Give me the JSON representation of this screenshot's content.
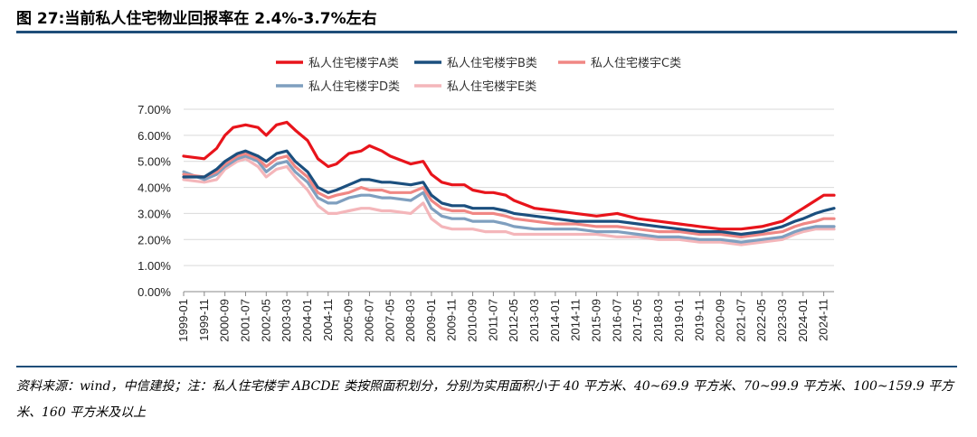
{
  "figure": {
    "title": "图 27:当前私人住宅物业回报率在 2.4%-3.7%左右",
    "source": "资料来源：wind，中信建投；注：私人住宅楼宇 ABCDE 类按照面积划分，分别为实用面积小于 40 平方米、40~69.9 平方米、70~99.9 平方米、100~159.9 平方米、160 平方米及以上"
  },
  "chart_data": {
    "type": "line",
    "title": "",
    "xlabel": "",
    "ylabel": "",
    "ylim": [
      0,
      7
    ],
    "yticks": [
      "0.00%",
      "1.00%",
      "2.00%",
      "3.00%",
      "4.00%",
      "5.00%",
      "6.00%",
      "7.00%"
    ],
    "xticks": [
      "1999-01",
      "1999-11",
      "2000-09",
      "2001-07",
      "2002-05",
      "2003-03",
      "2004-01",
      "2004-11",
      "2005-09",
      "2006-07",
      "2007-05",
      "2008-03",
      "2009-01",
      "2009-11",
      "2010-09",
      "2011-07",
      "2012-05",
      "2013-03",
      "2014-01",
      "2014-11",
      "2015-09",
      "2016-07",
      "2017-05",
      "2018-03",
      "2019-01",
      "2019-11",
      "2020-09",
      "2021-07",
      "2022-05",
      "2023-03",
      "2024-01",
      "2024-11"
    ],
    "x_start": "1999-01",
    "x_end": "2025-04",
    "legend_position": "top",
    "series": [
      {
        "name": "私人住宅楼宇A类",
        "color": "#e8141b",
        "points": [
          [
            "1999-01",
            5.2
          ],
          [
            "1999-11",
            5.1
          ],
          [
            "2000-05",
            5.5
          ],
          [
            "2000-09",
            6.0
          ],
          [
            "2001-01",
            6.3
          ],
          [
            "2001-07",
            6.4
          ],
          [
            "2002-01",
            6.3
          ],
          [
            "2002-05",
            6.0
          ],
          [
            "2002-10",
            6.4
          ],
          [
            "2003-03",
            6.5
          ],
          [
            "2003-07",
            6.2
          ],
          [
            "2004-01",
            5.8
          ],
          [
            "2004-06",
            5.1
          ],
          [
            "2004-11",
            4.8
          ],
          [
            "2005-03",
            4.9
          ],
          [
            "2005-09",
            5.3
          ],
          [
            "2006-03",
            5.4
          ],
          [
            "2006-07",
            5.6
          ],
          [
            "2007-01",
            5.4
          ],
          [
            "2007-05",
            5.2
          ],
          [
            "2008-03",
            4.9
          ],
          [
            "2008-09",
            5.0
          ],
          [
            "2009-01",
            4.5
          ],
          [
            "2009-06",
            4.2
          ],
          [
            "2009-11",
            4.1
          ],
          [
            "2010-05",
            4.1
          ],
          [
            "2010-09",
            3.9
          ],
          [
            "2011-03",
            3.8
          ],
          [
            "2011-07",
            3.8
          ],
          [
            "2012-01",
            3.7
          ],
          [
            "2012-05",
            3.5
          ],
          [
            "2013-03",
            3.2
          ],
          [
            "2014-01",
            3.1
          ],
          [
            "2014-11",
            3.0
          ],
          [
            "2015-09",
            2.9
          ],
          [
            "2016-07",
            3.0
          ],
          [
            "2017-05",
            2.8
          ],
          [
            "2018-03",
            2.7
          ],
          [
            "2019-01",
            2.6
          ],
          [
            "2019-11",
            2.5
          ],
          [
            "2020-09",
            2.4
          ],
          [
            "2021-07",
            2.4
          ],
          [
            "2022-05",
            2.5
          ],
          [
            "2023-03",
            2.7
          ],
          [
            "2023-09",
            3.0
          ],
          [
            "2024-01",
            3.2
          ],
          [
            "2024-07",
            3.5
          ],
          [
            "2024-11",
            3.7
          ],
          [
            "2025-04",
            3.7
          ]
        ]
      },
      {
        "name": "私人住宅楼宇B类",
        "color": "#1b4f7e",
        "points": [
          [
            "1999-01",
            4.4
          ],
          [
            "1999-11",
            4.4
          ],
          [
            "2000-05",
            4.7
          ],
          [
            "2000-09",
            5.0
          ],
          [
            "2001-03",
            5.3
          ],
          [
            "2001-07",
            5.4
          ],
          [
            "2002-01",
            5.2
          ],
          [
            "2002-05",
            5.0
          ],
          [
            "2002-10",
            5.3
          ],
          [
            "2003-03",
            5.4
          ],
          [
            "2003-07",
            5.0
          ],
          [
            "2004-01",
            4.6
          ],
          [
            "2004-06",
            4.0
          ],
          [
            "2004-11",
            3.8
          ],
          [
            "2005-03",
            3.9
          ],
          [
            "2005-09",
            4.1
          ],
          [
            "2006-03",
            4.3
          ],
          [
            "2006-07",
            4.3
          ],
          [
            "2007-01",
            4.2
          ],
          [
            "2007-05",
            4.2
          ],
          [
            "2008-03",
            4.1
          ],
          [
            "2008-09",
            4.2
          ],
          [
            "2009-01",
            3.7
          ],
          [
            "2009-06",
            3.4
          ],
          [
            "2009-11",
            3.3
          ],
          [
            "2010-05",
            3.3
          ],
          [
            "2010-09",
            3.2
          ],
          [
            "2011-03",
            3.2
          ],
          [
            "2011-07",
            3.2
          ],
          [
            "2012-01",
            3.1
          ],
          [
            "2012-05",
            3.0
          ],
          [
            "2013-03",
            2.9
          ],
          [
            "2014-01",
            2.8
          ],
          [
            "2014-11",
            2.7
          ],
          [
            "2015-09",
            2.7
          ],
          [
            "2016-07",
            2.7
          ],
          [
            "2017-05",
            2.6
          ],
          [
            "2018-03",
            2.5
          ],
          [
            "2019-01",
            2.4
          ],
          [
            "2019-11",
            2.3
          ],
          [
            "2020-09",
            2.3
          ],
          [
            "2021-07",
            2.2
          ],
          [
            "2022-05",
            2.3
          ],
          [
            "2023-03",
            2.5
          ],
          [
            "2023-09",
            2.7
          ],
          [
            "2024-01",
            2.8
          ],
          [
            "2024-07",
            3.0
          ],
          [
            "2024-11",
            3.1
          ],
          [
            "2025-04",
            3.2
          ]
        ]
      },
      {
        "name": "私人住宅楼宇C类",
        "color": "#f08784",
        "points": [
          [
            "1999-01",
            4.5
          ],
          [
            "1999-11",
            4.4
          ],
          [
            "2000-05",
            4.6
          ],
          [
            "2000-09",
            4.9
          ],
          [
            "2001-03",
            5.2
          ],
          [
            "2001-07",
            5.3
          ],
          [
            "2002-01",
            5.1
          ],
          [
            "2002-05",
            4.8
          ],
          [
            "2002-10",
            5.1
          ],
          [
            "2003-03",
            5.2
          ],
          [
            "2003-07",
            4.8
          ],
          [
            "2004-01",
            4.4
          ],
          [
            "2004-06",
            3.8
          ],
          [
            "2004-11",
            3.6
          ],
          [
            "2005-03",
            3.7
          ],
          [
            "2005-09",
            3.8
          ],
          [
            "2006-03",
            4.0
          ],
          [
            "2006-07",
            3.9
          ],
          [
            "2007-01",
            3.9
          ],
          [
            "2007-05",
            3.8
          ],
          [
            "2008-03",
            3.8
          ],
          [
            "2008-09",
            4.0
          ],
          [
            "2009-01",
            3.5
          ],
          [
            "2009-06",
            3.2
          ],
          [
            "2009-11",
            3.1
          ],
          [
            "2010-05",
            3.1
          ],
          [
            "2010-09",
            3.0
          ],
          [
            "2011-03",
            3.0
          ],
          [
            "2011-07",
            3.0
          ],
          [
            "2012-01",
            2.9
          ],
          [
            "2012-05",
            2.8
          ],
          [
            "2013-03",
            2.7
          ],
          [
            "2014-01",
            2.6
          ],
          [
            "2014-11",
            2.6
          ],
          [
            "2015-09",
            2.5
          ],
          [
            "2016-07",
            2.5
          ],
          [
            "2017-05",
            2.4
          ],
          [
            "2018-03",
            2.3
          ],
          [
            "2019-01",
            2.3
          ],
          [
            "2019-11",
            2.2
          ],
          [
            "2020-09",
            2.2
          ],
          [
            "2021-07",
            2.1
          ],
          [
            "2022-05",
            2.2
          ],
          [
            "2023-03",
            2.3
          ],
          [
            "2023-09",
            2.5
          ],
          [
            "2024-01",
            2.6
          ],
          [
            "2024-07",
            2.7
          ],
          [
            "2024-11",
            2.8
          ],
          [
            "2025-04",
            2.8
          ]
        ]
      },
      {
        "name": "私人住宅楼宇D类",
        "color": "#7f9fbf",
        "points": [
          [
            "1999-01",
            4.6
          ],
          [
            "1999-11",
            4.3
          ],
          [
            "2000-05",
            4.5
          ],
          [
            "2000-09",
            4.8
          ],
          [
            "2001-03",
            5.1
          ],
          [
            "2001-07",
            5.2
          ],
          [
            "2002-01",
            5.0
          ],
          [
            "2002-05",
            4.6
          ],
          [
            "2002-10",
            4.9
          ],
          [
            "2003-03",
            5.0
          ],
          [
            "2003-07",
            4.6
          ],
          [
            "2004-01",
            4.2
          ],
          [
            "2004-06",
            3.6
          ],
          [
            "2004-11",
            3.4
          ],
          [
            "2005-03",
            3.4
          ],
          [
            "2005-09",
            3.6
          ],
          [
            "2006-03",
            3.7
          ],
          [
            "2006-07",
            3.7
          ],
          [
            "2007-01",
            3.6
          ],
          [
            "2007-05",
            3.6
          ],
          [
            "2008-03",
            3.5
          ],
          [
            "2008-09",
            3.8
          ],
          [
            "2009-01",
            3.2
          ],
          [
            "2009-06",
            2.9
          ],
          [
            "2009-11",
            2.8
          ],
          [
            "2010-05",
            2.8
          ],
          [
            "2010-09",
            2.7
          ],
          [
            "2011-03",
            2.7
          ],
          [
            "2011-07",
            2.7
          ],
          [
            "2012-01",
            2.6
          ],
          [
            "2012-05",
            2.5
          ],
          [
            "2013-03",
            2.4
          ],
          [
            "2014-01",
            2.4
          ],
          [
            "2014-11",
            2.4
          ],
          [
            "2015-09",
            2.3
          ],
          [
            "2016-07",
            2.3
          ],
          [
            "2017-05",
            2.2
          ],
          [
            "2018-03",
            2.1
          ],
          [
            "2019-01",
            2.1
          ],
          [
            "2019-11",
            2.0
          ],
          [
            "2020-09",
            2.0
          ],
          [
            "2021-07",
            1.9
          ],
          [
            "2022-05",
            2.0
          ],
          [
            "2023-03",
            2.1
          ],
          [
            "2023-09",
            2.3
          ],
          [
            "2024-01",
            2.4
          ],
          [
            "2024-07",
            2.5
          ],
          [
            "2024-11",
            2.5
          ],
          [
            "2025-04",
            2.5
          ]
        ]
      },
      {
        "name": "私人住宅楼宇E类",
        "color": "#f4b6ba",
        "points": [
          [
            "1999-01",
            4.3
          ],
          [
            "1999-11",
            4.2
          ],
          [
            "2000-05",
            4.3
          ],
          [
            "2000-09",
            4.7
          ],
          [
            "2001-03",
            5.0
          ],
          [
            "2001-07",
            5.1
          ],
          [
            "2002-01",
            4.8
          ],
          [
            "2002-05",
            4.4
          ],
          [
            "2002-10",
            4.7
          ],
          [
            "2003-03",
            4.8
          ],
          [
            "2003-07",
            4.4
          ],
          [
            "2004-01",
            3.9
          ],
          [
            "2004-06",
            3.3
          ],
          [
            "2004-11",
            3.0
          ],
          [
            "2005-03",
            3.0
          ],
          [
            "2005-09",
            3.1
          ],
          [
            "2006-03",
            3.2
          ],
          [
            "2006-07",
            3.2
          ],
          [
            "2007-01",
            3.1
          ],
          [
            "2007-05",
            3.1
          ],
          [
            "2008-03",
            3.0
          ],
          [
            "2008-09",
            3.4
          ],
          [
            "2009-01",
            2.8
          ],
          [
            "2009-06",
            2.5
          ],
          [
            "2009-11",
            2.4
          ],
          [
            "2010-05",
            2.4
          ],
          [
            "2010-09",
            2.4
          ],
          [
            "2011-03",
            2.3
          ],
          [
            "2011-07",
            2.3
          ],
          [
            "2012-01",
            2.3
          ],
          [
            "2012-05",
            2.2
          ],
          [
            "2013-03",
            2.2
          ],
          [
            "2014-01",
            2.2
          ],
          [
            "2014-11",
            2.2
          ],
          [
            "2015-09",
            2.2
          ],
          [
            "2016-07",
            2.1
          ],
          [
            "2017-05",
            2.1
          ],
          [
            "2018-03",
            2.0
          ],
          [
            "2019-01",
            2.0
          ],
          [
            "2019-11",
            1.9
          ],
          [
            "2020-09",
            1.9
          ],
          [
            "2021-07",
            1.8
          ],
          [
            "2022-05",
            1.9
          ],
          [
            "2023-03",
            2.0
          ],
          [
            "2023-09",
            2.2
          ],
          [
            "2024-01",
            2.3
          ],
          [
            "2024-07",
            2.4
          ],
          [
            "2024-11",
            2.4
          ],
          [
            "2025-04",
            2.4
          ]
        ]
      }
    ]
  }
}
